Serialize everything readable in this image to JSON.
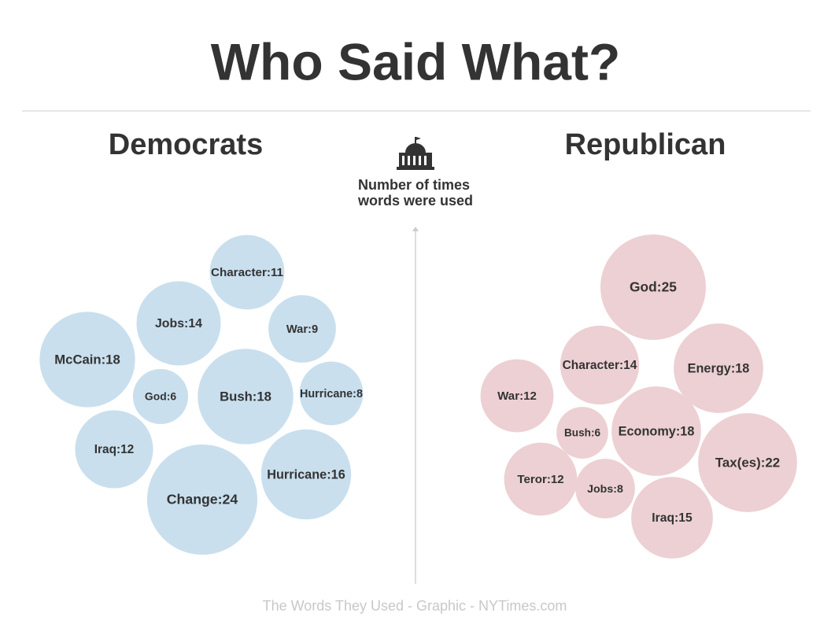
{
  "title": "Who Said What?",
  "note": [
    "Number of times",
    "words were used"
  ],
  "source": "The Words They Used - Graphic - NYTimes.com",
  "chart_data": [
    {
      "type": "bubble",
      "title": "Democrats",
      "color": "#c9dfee",
      "values": [
        11,
        14,
        9,
        18,
        6,
        18,
        8,
        12,
        16,
        24
      ],
      "value_labels": [
        "Character:11",
        "Jobs:14",
        "War:9",
        "McCain:18",
        "God:6",
        "Bush:18",
        "Hurricane:8",
        "Iraq:12",
        "Hurricane:16",
        "Change:24"
      ]
    },
    {
      "type": "bubble",
      "title": "Republican",
      "color": "#edd0d3",
      "values": [
        25,
        14,
        18,
        12,
        6,
        18,
        22,
        12,
        8,
        15
      ],
      "value_labels": [
        "God:25",
        "Character:14",
        "Energy:18",
        "War:12",
        "Bush:6",
        "Economy:18",
        "Tax(es):22",
        "Teror:12",
        "Jobs:8",
        "Iraq:15"
      ]
    }
  ]
}
